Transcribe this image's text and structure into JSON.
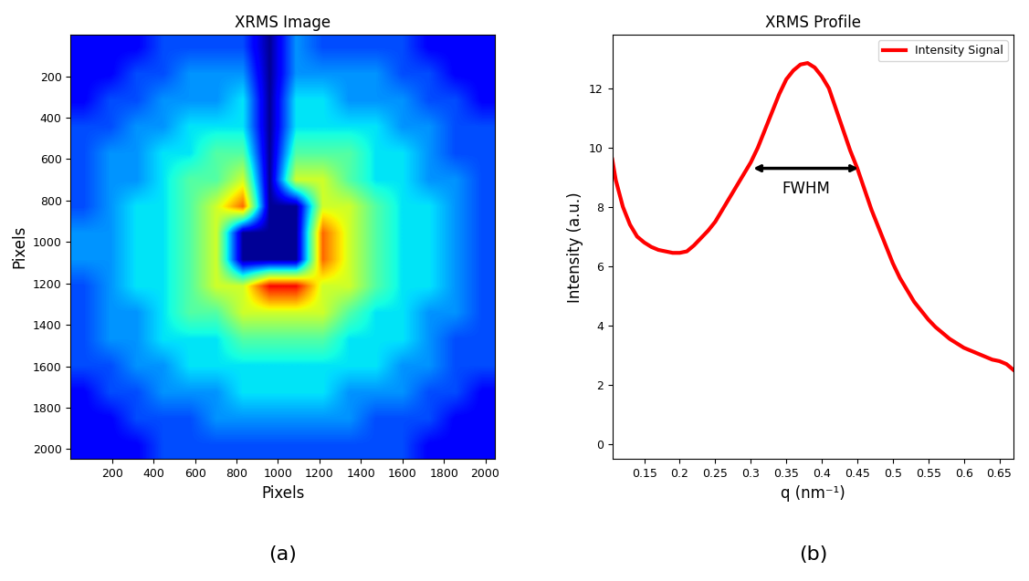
{
  "chart_data": [
    {
      "type": "heatmap",
      "title": "XRMS Image",
      "x_label": "Pixels",
      "y_label": "Pixels",
      "caption": "(a)",
      "xlim": [
        0,
        2048
      ],
      "ylim": [
        2048,
        0
      ],
      "xticks": [
        200,
        400,
        600,
        800,
        1000,
        1200,
        1400,
        1600,
        1800,
        2000
      ],
      "yticks": [
        200,
        400,
        600,
        800,
        1000,
        1200,
        1400,
        1600,
        1800,
        2000
      ],
      "color_range": [
        0,
        1
      ],
      "cells": [
        [
          0.12,
          0.12,
          0.12,
          0.2,
          0.2,
          0.2,
          0.2,
          0.02,
          0.27,
          0.2,
          0.2,
          0.2,
          0.2,
          0.12,
          0.12,
          0.12
        ],
        [
          0.12,
          0.12,
          0.2,
          0.2,
          0.27,
          0.27,
          0.27,
          0.02,
          0.27,
          0.27,
          0.27,
          0.27,
          0.2,
          0.2,
          0.12,
          0.12
        ],
        [
          0.12,
          0.2,
          0.2,
          0.27,
          0.27,
          0.27,
          0.35,
          0.02,
          0.35,
          0.35,
          0.27,
          0.27,
          0.27,
          0.2,
          0.2,
          0.12
        ],
        [
          0.2,
          0.2,
          0.27,
          0.27,
          0.35,
          0.35,
          0.35,
          0.02,
          0.35,
          0.35,
          0.35,
          0.35,
          0.27,
          0.27,
          0.2,
          0.2
        ],
        [
          0.2,
          0.27,
          0.27,
          0.35,
          0.35,
          0.45,
          0.45,
          0.02,
          0.45,
          0.45,
          0.45,
          0.35,
          0.35,
          0.27,
          0.2,
          0.2
        ],
        [
          0.2,
          0.27,
          0.27,
          0.35,
          0.45,
          0.45,
          0.6,
          0.02,
          0.6,
          0.6,
          0.45,
          0.35,
          0.35,
          0.27,
          0.27,
          0.2
        ],
        [
          0.2,
          0.27,
          0.35,
          0.35,
          0.45,
          0.6,
          0.8,
          0.02,
          0.02,
          0.6,
          0.6,
          0.45,
          0.35,
          0.35,
          0.27,
          0.2
        ],
        [
          0.27,
          0.27,
          0.35,
          0.35,
          0.45,
          0.6,
          0.02,
          0.02,
          0.02,
          0.8,
          0.6,
          0.45,
          0.35,
          0.35,
          0.27,
          0.2
        ],
        [
          0.27,
          0.27,
          0.35,
          0.35,
          0.45,
          0.6,
          0.02,
          0.02,
          0.02,
          0.8,
          0.6,
          0.45,
          0.35,
          0.35,
          0.27,
          0.2
        ],
        [
          0.2,
          0.27,
          0.35,
          0.35,
          0.45,
          0.6,
          0.6,
          0.9,
          0.9,
          0.6,
          0.6,
          0.45,
          0.35,
          0.35,
          0.27,
          0.2
        ],
        [
          0.2,
          0.27,
          0.27,
          0.35,
          0.45,
          0.45,
          0.6,
          0.6,
          0.6,
          0.6,
          0.45,
          0.35,
          0.35,
          0.27,
          0.27,
          0.2
        ],
        [
          0.2,
          0.27,
          0.27,
          0.35,
          0.35,
          0.35,
          0.45,
          0.45,
          0.45,
          0.45,
          0.35,
          0.35,
          0.35,
          0.27,
          0.2,
          0.2
        ],
        [
          0.2,
          0.2,
          0.27,
          0.27,
          0.35,
          0.35,
          0.35,
          0.35,
          0.35,
          0.35,
          0.35,
          0.35,
          0.27,
          0.27,
          0.2,
          0.2
        ],
        [
          0.12,
          0.2,
          0.2,
          0.27,
          0.27,
          0.27,
          0.35,
          0.35,
          0.35,
          0.35,
          0.27,
          0.27,
          0.27,
          0.2,
          0.2,
          0.12
        ],
        [
          0.12,
          0.12,
          0.2,
          0.2,
          0.2,
          0.27,
          0.27,
          0.27,
          0.27,
          0.27,
          0.27,
          0.2,
          0.2,
          0.2,
          0.12,
          0.12
        ],
        [
          0.12,
          0.12,
          0.12,
          0.2,
          0.2,
          0.2,
          0.2,
          0.2,
          0.2,
          0.2,
          0.2,
          0.2,
          0.2,
          0.12,
          0.12,
          0.12
        ]
      ]
    },
    {
      "type": "line",
      "title": "XRMS Profile",
      "x_label": "q (nm⁻¹)",
      "y_label": "Intensity (a.u.)",
      "caption": "(b)",
      "xlim": [
        0.105,
        0.67
      ],
      "ylim": [
        -0.5,
        13.8
      ],
      "xticks": [
        0.15,
        0.2,
        0.25,
        0.3,
        0.35,
        0.4,
        0.45,
        0.5,
        0.55,
        0.6,
        0.65
      ],
      "yticks": [
        0,
        2,
        4,
        6,
        8,
        10,
        12
      ],
      "legend": "upper right",
      "x": [
        0.105,
        0.11,
        0.12,
        0.13,
        0.14,
        0.15,
        0.16,
        0.17,
        0.18,
        0.19,
        0.2,
        0.21,
        0.22,
        0.23,
        0.24,
        0.25,
        0.26,
        0.27,
        0.28,
        0.29,
        0.3,
        0.31,
        0.32,
        0.33,
        0.34,
        0.35,
        0.36,
        0.37,
        0.38,
        0.39,
        0.4,
        0.41,
        0.42,
        0.43,
        0.44,
        0.45,
        0.46,
        0.47,
        0.48,
        0.49,
        0.5,
        0.51,
        0.52,
        0.53,
        0.54,
        0.55,
        0.56,
        0.57,
        0.58,
        0.59,
        0.6,
        0.61,
        0.62,
        0.63,
        0.64,
        0.65,
        0.66,
        0.67
      ],
      "series": [
        {
          "name": "Intensity Signal",
          "color": "#ff0000",
          "values": [
            9.6,
            8.9,
            8.0,
            7.4,
            7.0,
            6.8,
            6.65,
            6.55,
            6.5,
            6.45,
            6.45,
            6.5,
            6.7,
            6.95,
            7.2,
            7.5,
            7.9,
            8.3,
            8.7,
            9.1,
            9.5,
            10.0,
            10.6,
            11.2,
            11.8,
            12.3,
            12.6,
            12.8,
            12.85,
            12.7,
            12.4,
            12.0,
            11.3,
            10.6,
            9.9,
            9.3,
            8.6,
            7.9,
            7.3,
            6.7,
            6.1,
            5.6,
            5.2,
            4.8,
            4.5,
            4.2,
            3.95,
            3.75,
            3.55,
            3.4,
            3.25,
            3.15,
            3.05,
            2.95,
            2.85,
            2.8,
            2.7,
            2.5
          ]
        }
      ],
      "annotation": {
        "text": "FWHM",
        "x_start": 0.3,
        "x_end": 0.455,
        "y": 9.3
      }
    }
  ]
}
